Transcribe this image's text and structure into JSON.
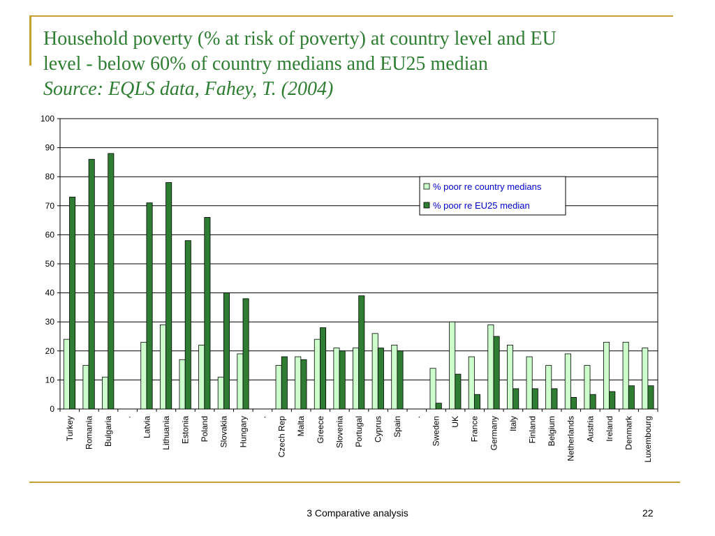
{
  "title": {
    "line1": "Household poverty (% at risk of poverty) at country level and EU",
    "line2": "level - below 60% of country medians and EU25 median",
    "source": "Source: EQLS data, Fahey, T. (2004)"
  },
  "footer": {
    "text": "3 Comparative analysis",
    "page": "22"
  },
  "colors": {
    "accent": "#c8a030",
    "title": "#2e7d32",
    "light_bar": "#ccffcc",
    "dark_bar": "#2e7d32",
    "legend_text": "#0000cc"
  },
  "chart_data": {
    "type": "bar",
    "ylim": [
      0,
      100
    ],
    "yticks": [
      "0",
      "10",
      "20",
      "30",
      "40",
      "50",
      "60",
      "70",
      "80",
      "90",
      "100"
    ],
    "grid": true,
    "legend_position": "top-right",
    "categories": [
      "Turkey",
      "Romania",
      "Bulgaria",
      ".",
      "Latvia",
      "Lithuania",
      "Estonia",
      "Poland",
      "Slovakia",
      "Hungary",
      ".",
      "Czech Rep",
      "Malta",
      "Greece",
      "Slovenia",
      "Portugal",
      "Cyprus",
      "Spain",
      ".",
      "Sweden",
      "UK",
      "France",
      "Germany",
      "Italy",
      "Finland",
      "Belgium",
      "Netherlands",
      "Austria",
      "Ireland",
      "Denmark",
      "Luxembourg"
    ],
    "series": [
      {
        "name": "% poor re country medians",
        "color": "#ccffcc",
        "values": [
          24,
          15,
          11,
          null,
          23,
          29,
          17,
          22,
          11,
          19,
          null,
          15,
          18,
          24,
          21,
          21,
          26,
          22,
          null,
          14,
          30,
          18,
          29,
          22,
          18,
          15,
          19,
          15,
          23,
          23,
          21
        ]
      },
      {
        "name": "% poor re EU25 median",
        "color": "#2e7d32",
        "values": [
          73,
          86,
          88,
          null,
          71,
          78,
          58,
          66,
          40,
          38,
          null,
          18,
          17,
          28,
          20,
          39,
          21,
          20,
          null,
          2,
          12,
          5,
          25,
          7,
          7,
          7,
          4,
          5,
          6,
          8,
          8
        ]
      }
    ]
  }
}
